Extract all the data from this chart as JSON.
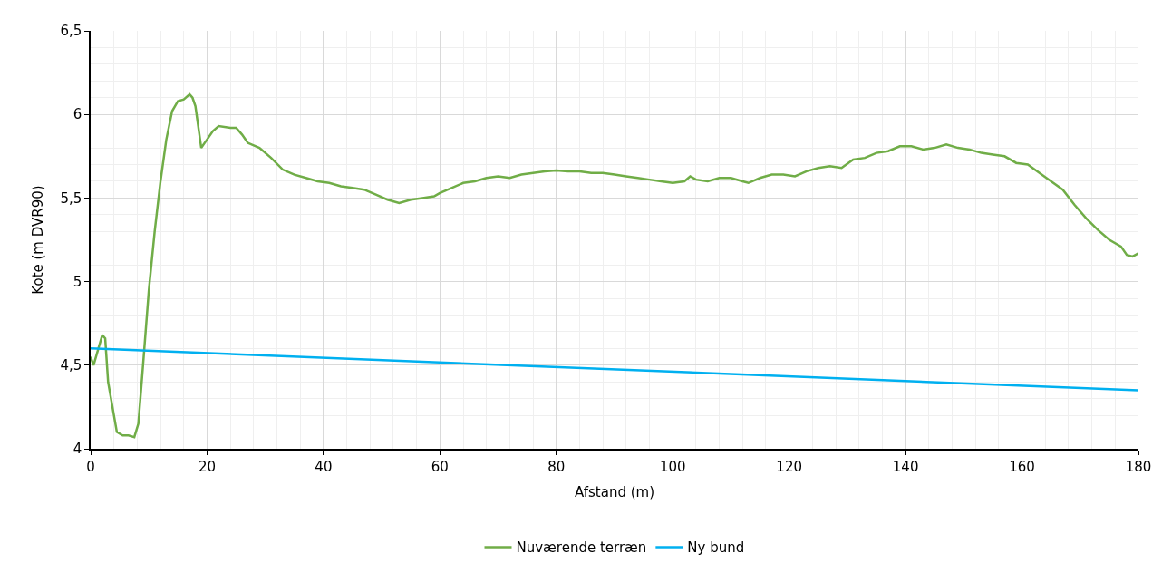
{
  "chart_data": {
    "type": "line",
    "xlabel": "Afstand (m)",
    "ylabel": "Kote (m DVR90)",
    "xlim": [
      0,
      180
    ],
    "xticks": [
      0,
      20,
      40,
      60,
      80,
      100,
      120,
      140,
      160,
      180
    ],
    "ylim": [
      4,
      6.5
    ],
    "yticks": [
      4,
      {
        "value": 4.5,
        "label": "4,5"
      },
      5,
      {
        "value": 5.5,
        "label": "5,5"
      },
      6,
      {
        "value": 6.5,
        "label": "6,5"
      }
    ],
    "grid": true,
    "legend": "bottom",
    "marker": "none",
    "line_style": "solid",
    "series": [
      {
        "name": "Nuværende terræn",
        "color": "#70ad47",
        "x": [
          0,
          0.5,
          1.5,
          2,
          2.5,
          3,
          4,
          4.5,
          5.5,
          6.5,
          7.5,
          8.2,
          9,
          10,
          11,
          12,
          13,
          14,
          15,
          16,
          17,
          17.5,
          18,
          19,
          20,
          21,
          22,
          24,
          25,
          26,
          27,
          29,
          31,
          33,
          35,
          37,
          39,
          41,
          43,
          45,
          47,
          49,
          51,
          53,
          55,
          57,
          59,
          60,
          62,
          64,
          66,
          68,
          70,
          72,
          74,
          76,
          78,
          80,
          82,
          84,
          86,
          88,
          90,
          92,
          94,
          96,
          98,
          100,
          102,
          103,
          104,
          106,
          108,
          110,
          112,
          113,
          115,
          117,
          119,
          121,
          123,
          125,
          127,
          129,
          131,
          133,
          135,
          137,
          139,
          141,
          143,
          145,
          147,
          149,
          151,
          153,
          155,
          157,
          159,
          161,
          163,
          165,
          167,
          169,
          171,
          173,
          175,
          177,
          178,
          179,
          180
        ],
        "values": [
          4.55,
          4.5,
          4.62,
          4.68,
          4.66,
          4.4,
          4.2,
          4.1,
          4.08,
          4.08,
          4.07,
          4.15,
          4.5,
          4.95,
          5.3,
          5.6,
          5.85,
          6.02,
          6.08,
          6.09,
          6.12,
          6.1,
          6.05,
          5.8,
          5.85,
          5.9,
          5.93,
          5.92,
          5.92,
          5.88,
          5.83,
          5.8,
          5.74,
          5.67,
          5.64,
          5.62,
          5.6,
          5.59,
          5.57,
          5.56,
          5.55,
          5.52,
          5.49,
          5.47,
          5.49,
          5.5,
          5.51,
          5.53,
          5.56,
          5.59,
          5.6,
          5.62,
          5.63,
          5.62,
          5.64,
          5.65,
          5.66,
          5.665,
          5.66,
          5.66,
          5.65,
          5.65,
          5.64,
          5.63,
          5.62,
          5.61,
          5.6,
          5.59,
          5.6,
          5.63,
          5.61,
          5.6,
          5.62,
          5.62,
          5.6,
          5.59,
          5.62,
          5.64,
          5.64,
          5.63,
          5.66,
          5.68,
          5.69,
          5.68,
          5.73,
          5.74,
          5.77,
          5.78,
          5.81,
          5.81,
          5.79,
          5.8,
          5.82,
          5.8,
          5.79,
          5.77,
          5.76,
          5.75,
          5.71,
          5.7,
          5.65,
          5.6,
          5.55,
          5.46,
          5.38,
          5.31,
          5.25,
          5.21,
          5.16,
          5.15,
          5.17
        ]
      },
      {
        "name": "Ny bund",
        "color": "#00b0f0",
        "x": [
          0,
          180
        ],
        "values": [
          4.6,
          4.35
        ]
      }
    ]
  }
}
